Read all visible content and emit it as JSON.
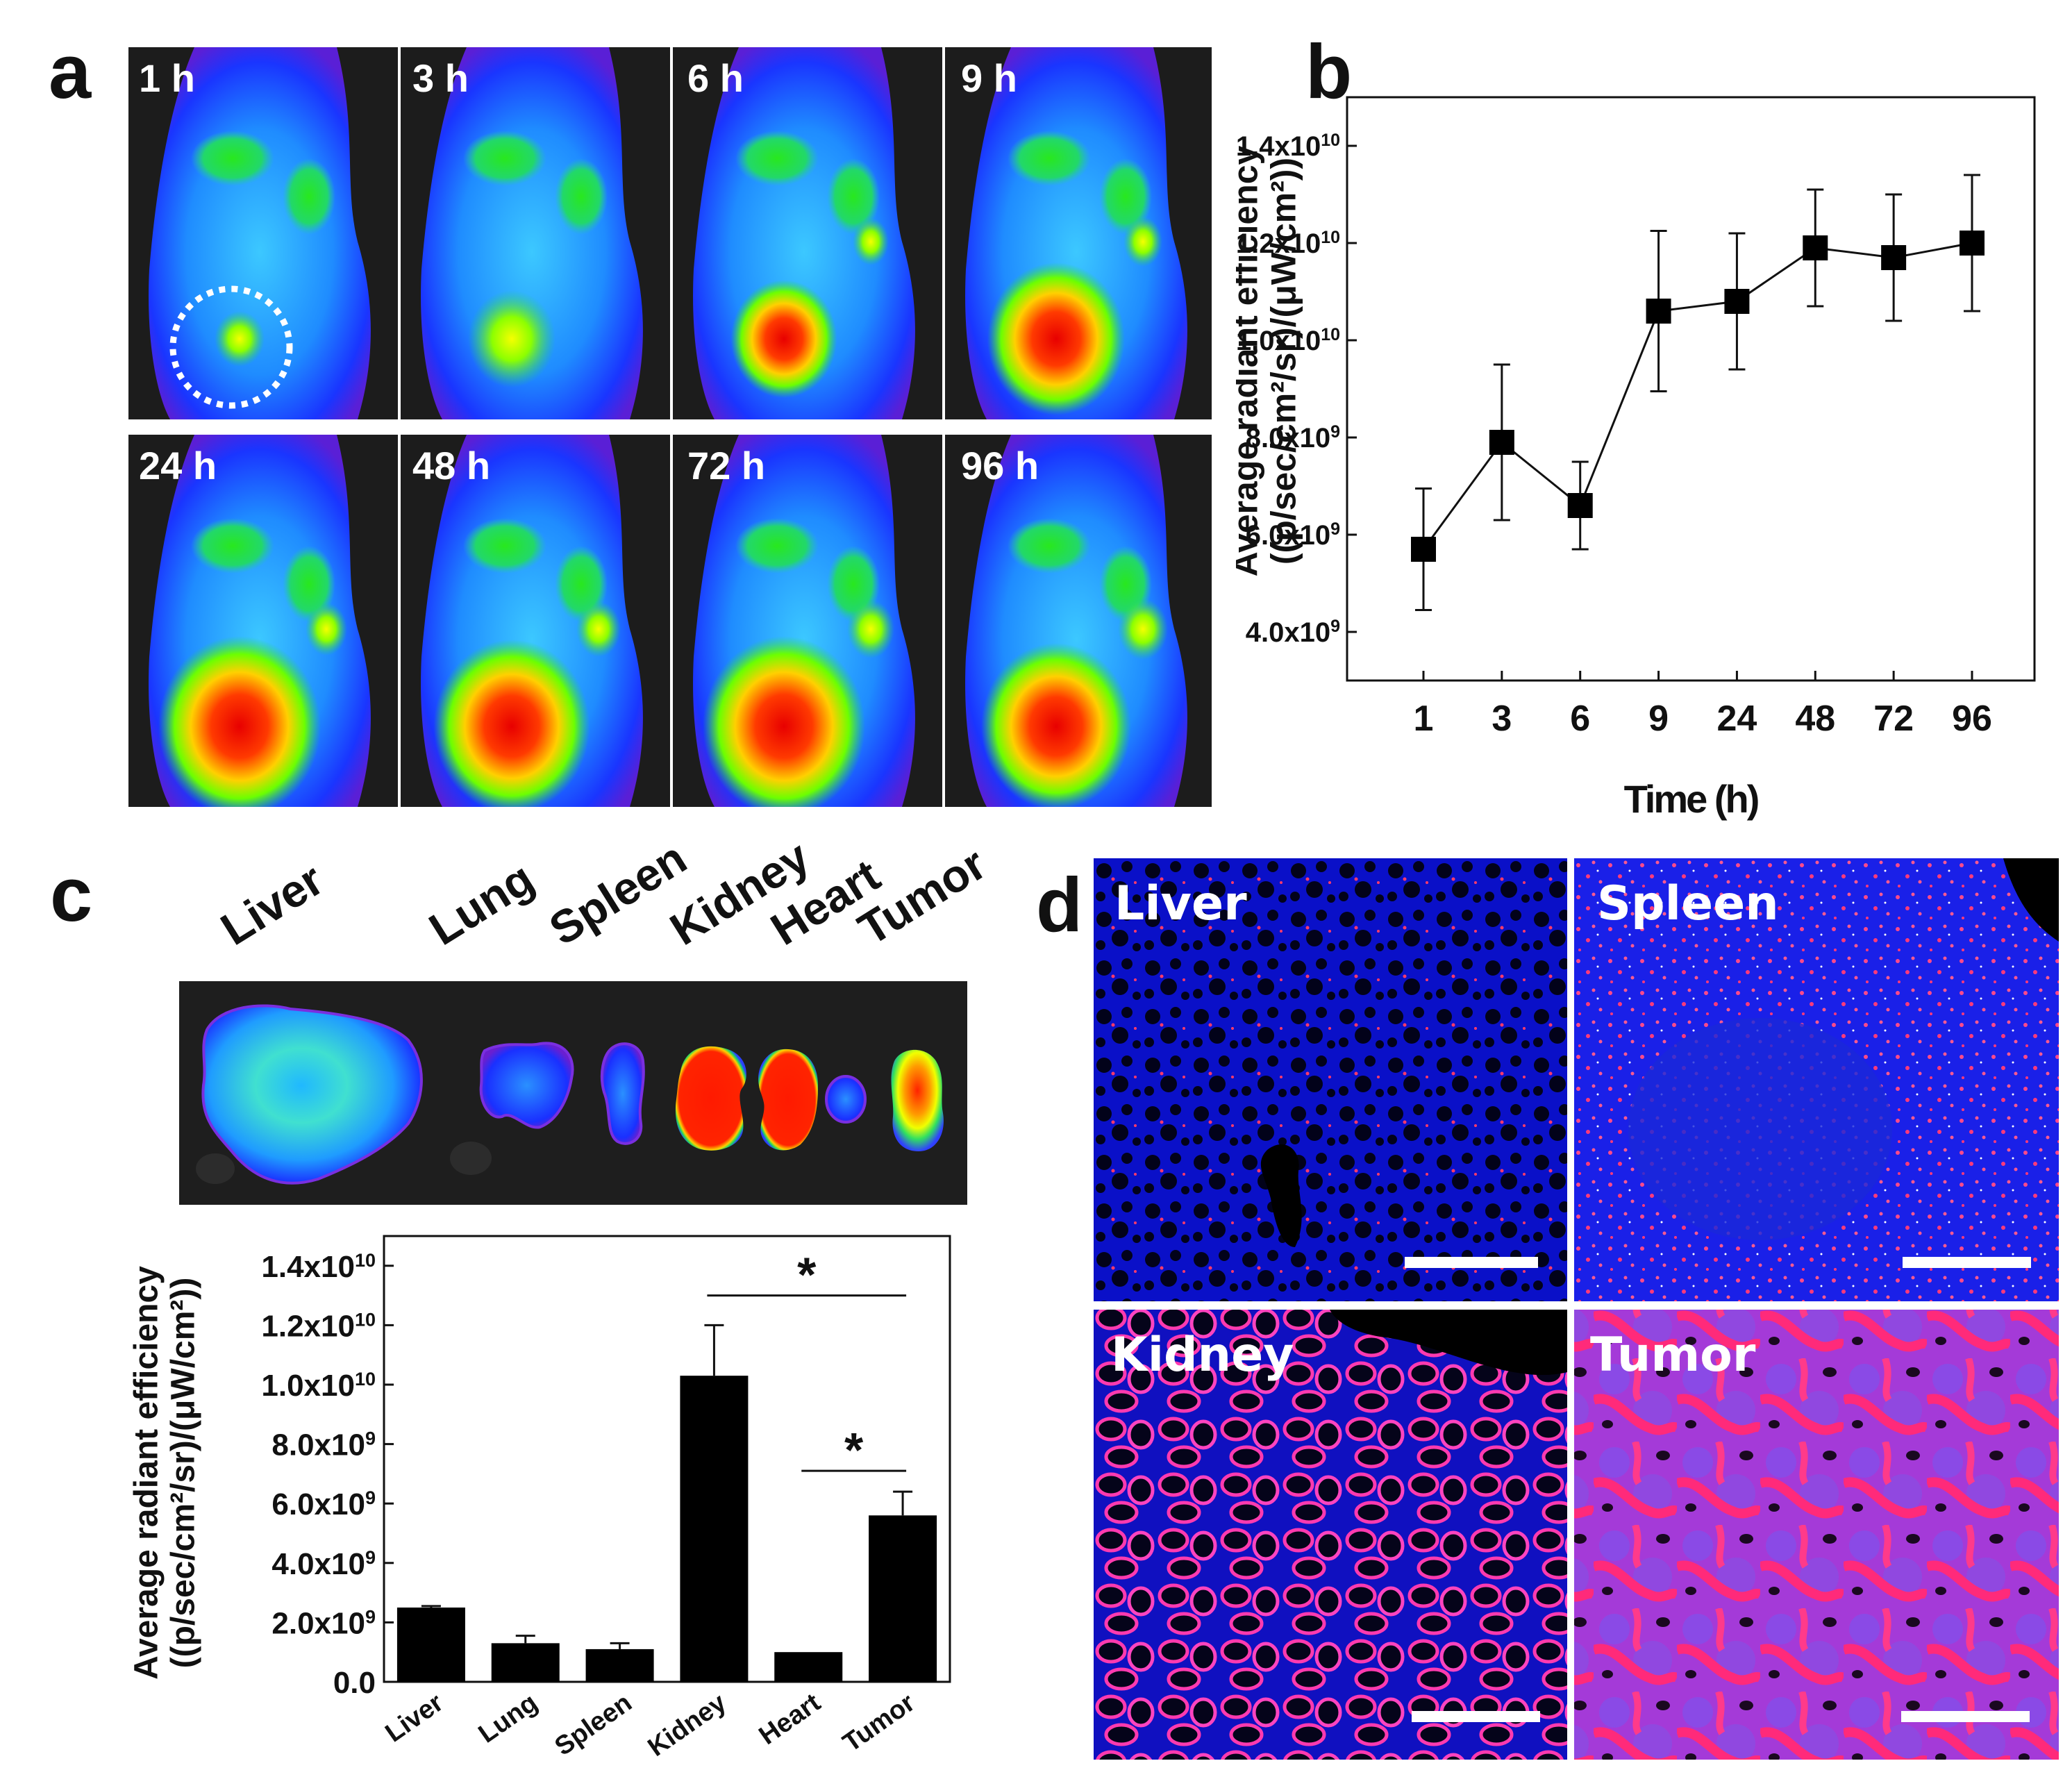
{
  "panel_letters": {
    "a": "a",
    "b": "b",
    "c": "c",
    "d": "d"
  },
  "panel_a": {
    "timepoints": [
      "1 h",
      "3 h",
      "6 h",
      "9 h",
      "24 h",
      "48 h",
      "72 h",
      "96 h"
    ]
  },
  "panel_c": {
    "organ_labels": [
      "Liver",
      "Lung",
      "Spleen",
      "Kidney",
      "Heart",
      "Tumor"
    ]
  },
  "panel_d": {
    "labels": [
      "Liver",
      "Spleen",
      "Kidney",
      "Tumor"
    ]
  },
  "colors": {
    "axis": "#111111",
    "marker": "#000000",
    "bar": "#000000",
    "nuclei": "#1a2bff",
    "probe": "#ff2a5a",
    "background_dark": "#1e1e1e"
  },
  "chart_data": [
    {
      "id": "b",
      "type": "line",
      "title": "",
      "categories": [
        "1",
        "3",
        "6",
        "9",
        "24",
        "48",
        "72",
        "96"
      ],
      "series": [
        {
          "name": "Average radiant efficiency",
          "values": [
            5700000000.0,
            7900000000.0,
            6600000000.0,
            10600000000.0,
            10800000000.0,
            11900000000.0,
            11700000000.0,
            12000000000.0
          ],
          "errors": [
            1250000000.0,
            1600000000.0,
            900000000.0,
            1650000000.0,
            1400000000.0,
            1200000000.0,
            1300000000.0,
            1400000000.0
          ]
        }
      ],
      "xlabel": "Time (h)",
      "ylabel_line1": "Average radiant efficiency",
      "ylabel_line2": "((p/sec/cm²/sr)/(μW/cm²))",
      "ylim": [
        3000000000.0,
        15000000000.0
      ],
      "yticks": [
        {
          "value": 4000000000.0,
          "mant": "4.0x10",
          "exp": "9"
        },
        {
          "value": 6000000000.0,
          "mant": "6.0x10",
          "exp": "9"
        },
        {
          "value": 8000000000.0,
          "mant": "8.0x10",
          "exp": "9"
        },
        {
          "value": 10000000000.0,
          "mant": "1.0x10",
          "exp": "10"
        },
        {
          "value": 12000000000.0,
          "mant": "1.2x10",
          "exp": "10"
        },
        {
          "value": 14000000000.0,
          "mant": "1.4x10",
          "exp": "10"
        }
      ]
    },
    {
      "id": "c",
      "type": "bar",
      "title": "",
      "categories": [
        "Liver",
        "Lung",
        "Spleen",
        "Kidney",
        "Heart",
        "Tumor"
      ],
      "values": [
        2500000000.0,
        1300000000.0,
        1100000000.0,
        10300000000.0,
        1000000000.0,
        5600000000.0
      ],
      "errors": [
        50000000.0,
        250000000.0,
        200000000.0,
        1700000000.0,
        0.0,
        800000000.0
      ],
      "xlabel": "",
      "ylabel_line1": "Average radiant efficiency",
      "ylabel_line2": "((p/sec/cm²/sr)/(μW/cm²))",
      "ylim": [
        0,
        15000000000.0
      ],
      "yticks": [
        {
          "value": 0,
          "mant": "0.0",
          "exp": ""
        },
        {
          "value": 2000000000.0,
          "mant": "2.0x10",
          "exp": "9"
        },
        {
          "value": 4000000000.0,
          "mant": "4.0x10",
          "exp": "9"
        },
        {
          "value": 6000000000.0,
          "mant": "6.0x10",
          "exp": "9"
        },
        {
          "value": 8000000000.0,
          "mant": "8.0x10",
          "exp": "9"
        },
        {
          "value": 10000000000.0,
          "mant": "1.0x10",
          "exp": "10"
        },
        {
          "value": 12000000000.0,
          "mant": "1.2x10",
          "exp": "10"
        },
        {
          "value": 14000000000.0,
          "mant": "1.4x10",
          "exp": "10"
        }
      ],
      "significance": [
        {
          "from": "Kidney",
          "to": "Tumor",
          "label": "*"
        },
        {
          "from": "Heart",
          "to": "Tumor",
          "label": "*"
        }
      ]
    }
  ]
}
